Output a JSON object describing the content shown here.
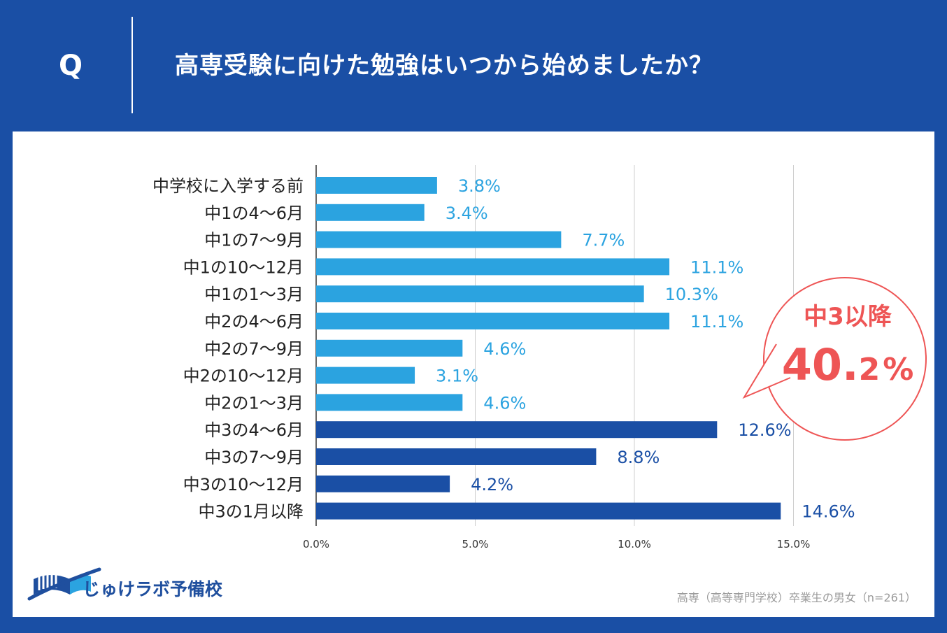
{
  "header": {
    "q_label": "Q",
    "question": "高専受験に向けた勉強はいつから始めましたか？"
  },
  "colors": {
    "background": "#1a4fa5",
    "bar_light": "#2ba3e0",
    "bar_dark": "#1a4fa5",
    "label_light": "#2ba3e0",
    "label_dark": "#1a4fa5",
    "callout_red": "#ee5555",
    "grid": "#cfcfcf",
    "axis": "#333333"
  },
  "callout": {
    "title": "中3以降",
    "value_main": "40.",
    "value_decimal": "2",
    "value_unit": "%"
  },
  "footer": {
    "logo_text": "じゅけラボ予備校",
    "source": "高専（高等専門学校）卒業生の男女（n=261）"
  },
  "chart_data": {
    "type": "bar",
    "orientation": "horizontal",
    "title": "高専受験に向けた勉強はいつから始めましたか？",
    "xlabel": "",
    "ylabel": "",
    "xlim": [
      0,
      15
    ],
    "x_ticks": [
      "0.0%",
      "5.0%",
      "10.0%",
      "15.0%"
    ],
    "grid": true,
    "categories": [
      "中学校に入学する前",
      "中1の4〜6月",
      "中1の7〜9月",
      "中1の10〜12月",
      "中1の1〜3月",
      "中2の4〜6月",
      "中2の7〜9月",
      "中2の10〜12月",
      "中2の1〜3月",
      "中3の4〜6月",
      "中3の7〜9月",
      "中3の10〜12月",
      "中3の1月以降"
    ],
    "values": [
      3.8,
      3.4,
      7.7,
      11.1,
      10.3,
      11.1,
      4.6,
      3.1,
      4.6,
      12.6,
      8.8,
      4.2,
      14.6
    ],
    "labels": [
      "3.8%",
      "3.4%",
      "7.7%",
      "11.1%",
      "10.3%",
      "11.1%",
      "4.6%",
      "3.1%",
      "4.6%",
      "12.6%",
      "8.8%",
      "4.2%",
      "14.6%"
    ],
    "highlight": [
      false,
      false,
      false,
      false,
      false,
      false,
      false,
      false,
      false,
      true,
      true,
      true,
      true
    ]
  }
}
